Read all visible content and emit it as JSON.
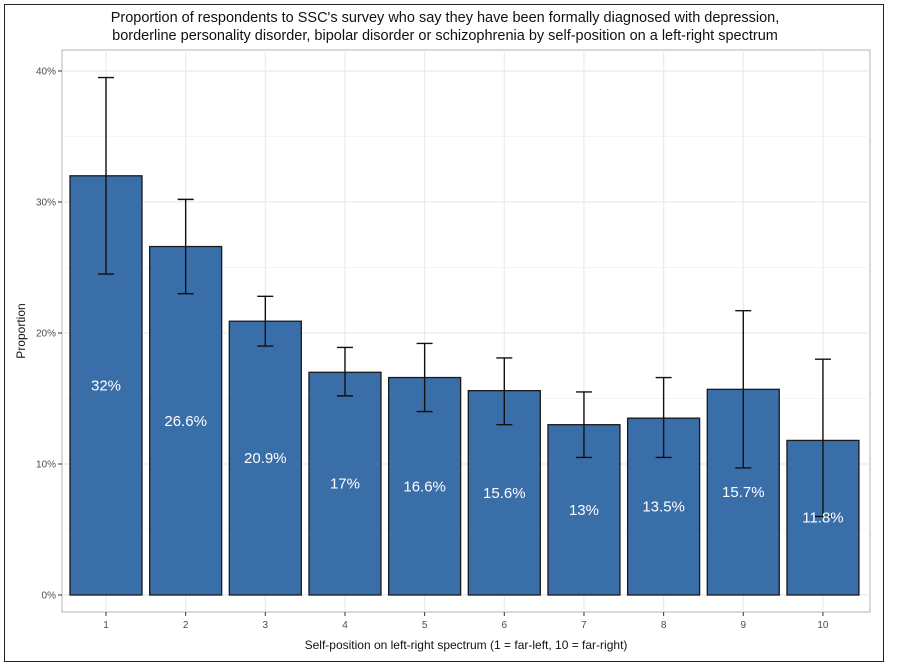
{
  "chart_data": {
    "type": "bar",
    "title_lines": [
      "Proportion of respondents to SSC's survey who say they have been formally diagnosed with depression,",
      "borderline personality disorder, bipolar disorder or schizophrenia by self-position on a left-right spectrum"
    ],
    "xlabel": "Self-position on left-right spectrum (1 = far-left, 10 = far-right)",
    "ylabel": "Proportion",
    "categories": [
      "1",
      "2",
      "3",
      "4",
      "5",
      "6",
      "7",
      "8",
      "9",
      "10"
    ],
    "values": [
      0.32,
      0.266,
      0.209,
      0.17,
      0.166,
      0.156,
      0.13,
      0.135,
      0.157,
      0.118
    ],
    "data_labels": [
      "32%",
      "26.6%",
      "20.9%",
      "17%",
      "16.6%",
      "15.6%",
      "13%",
      "13.5%",
      "15.7%",
      "11.8%"
    ],
    "error_lower": [
      0.245,
      0.23,
      0.19,
      0.152,
      0.14,
      0.13,
      0.105,
      0.105,
      0.097,
      0.06
    ],
    "error_upper": [
      0.395,
      0.302,
      0.228,
      0.189,
      0.192,
      0.181,
      0.155,
      0.166,
      0.217,
      0.18
    ],
    "yticks": [
      0,
      0.1,
      0.2,
      0.3,
      0.4
    ],
    "ytick_labels": [
      "0%",
      "10%",
      "20%",
      "30%",
      "40%"
    ],
    "ylim": [
      0,
      0.4
    ],
    "grid": true,
    "bar_color": "#3a6ea8",
    "bar_edge_color": "#1a1a1a",
    "panel_border_color": "#b3b3b3",
    "grid_color": "#ebebeb"
  }
}
